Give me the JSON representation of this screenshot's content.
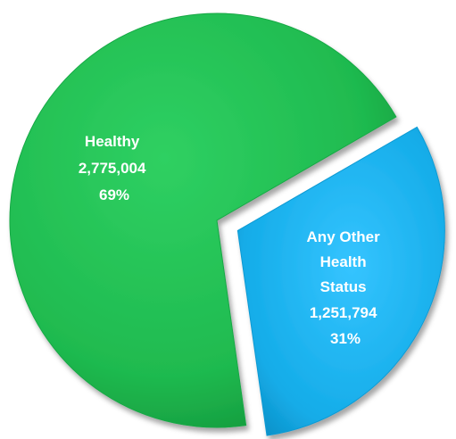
{
  "chart_data": {
    "type": "pie",
    "exploded": true,
    "slices": [
      {
        "label": "Healthy",
        "value": 2775004,
        "value_text": "2,775,004",
        "percent": 69,
        "percent_text": "69%",
        "color": "#1fba4f"
      },
      {
        "label": "Any Other Health Status",
        "value": 1251794,
        "value_text": "1,251,794",
        "percent": 31,
        "percent_text": "31%",
        "color": "#15b0ee"
      }
    ]
  }
}
